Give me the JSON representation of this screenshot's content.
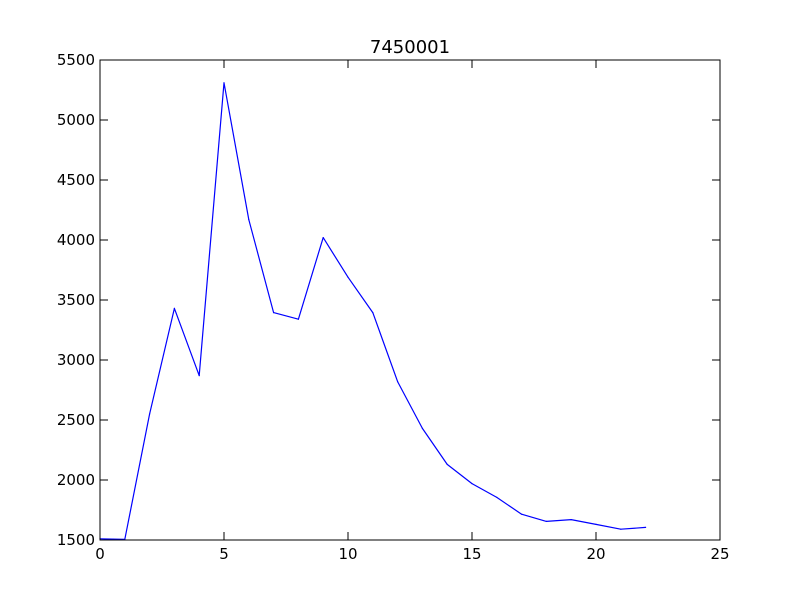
{
  "chart_data": {
    "type": "line",
    "title": "7450001",
    "xlabel": "",
    "ylabel": "",
    "xlim": [
      0,
      25
    ],
    "ylim": [
      1500,
      5500
    ],
    "xticks": [
      "0",
      "5",
      "10",
      "15",
      "20",
      "25"
    ],
    "yticks": [
      "1500",
      "2000",
      "2500",
      "3000",
      "3500",
      "4000",
      "4500",
      "5000",
      "5500"
    ],
    "grid": false,
    "series": [
      {
        "color": "#0000ff",
        "x": [
          0,
          1,
          2,
          3,
          4,
          5,
          6,
          7,
          8,
          9,
          10,
          11,
          12,
          13,
          14,
          15,
          16,
          17,
          18,
          19,
          20,
          21,
          22
        ],
        "y": [
          1510,
          1505,
          2550,
          3430,
          2870,
          5310,
          4170,
          3395,
          3340,
          4020,
          3690,
          3395,
          2820,
          2430,
          2130,
          1970,
          1855,
          1715,
          1655,
          1670,
          1630,
          1590,
          1605
        ]
      }
    ]
  }
}
